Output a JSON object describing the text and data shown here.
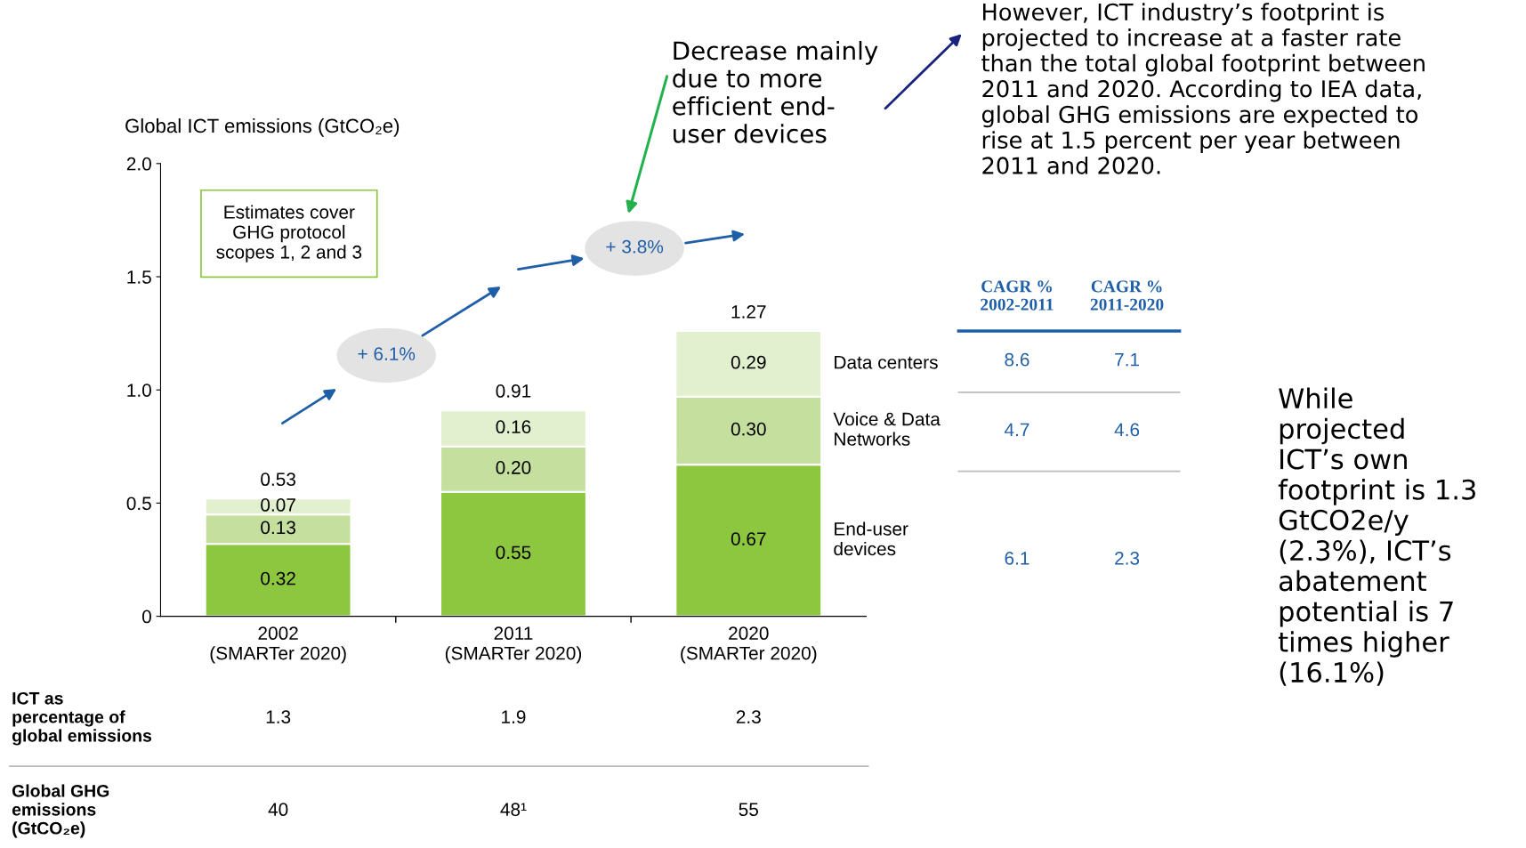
{
  "chart_data": {
    "type": "bar",
    "stacked": true,
    "ylabel": "Global ICT emissions (GtCO₂e)",
    "categories": [
      "2002\n(SMARTer 2020)",
      "2011\n(SMARTer 2020)",
      "2020\n(SMARTer 2020)"
    ],
    "series": [
      {
        "name": "End-user\ndevices",
        "color": "#8dc63f",
        "values": [
          0.32,
          0.55,
          0.67
        ],
        "value_labels": [
          "0.32",
          "0.55",
          "0.67"
        ]
      },
      {
        "name": "Voice & Data\nNetworks",
        "color": "#c5df9f",
        "values": [
          0.13,
          0.2,
          0.3
        ],
        "value_labels": [
          "0.13",
          "0.20",
          "0.30"
        ]
      },
      {
        "name": "Data centers",
        "color": "#e3f0d0",
        "values": [
          0.07,
          0.16,
          0.29
        ],
        "value_labels": [
          "0.07",
          "0.16",
          "0.29"
        ]
      }
    ],
    "totals": [
      "0.53",
      "0.91",
      "1.27"
    ],
    "ylim": [
      0,
      2.0
    ],
    "yticks": [
      0,
      {
        "value": 0.5,
        "label": "0.5"
      },
      {
        "value": 1.0,
        "label": "1.0"
      },
      {
        "value": 1.5,
        "label": "1.5"
      },
      {
        "value": 2.0,
        "label": "2.0"
      }
    ],
    "grid": false,
    "legend": false,
    "annotations": [
      "Estimates cover\nGHG protocol\nscopes 1, 2 and 3",
      "+ 6.1%",
      "+ 3.8%",
      "Decrease mainly\ndue to more\nefficient end-\nuser devices",
      "However, ICT industry’s footprint is\nprojected to increase at a faster rate\nthan the total global footprint between\n2011 and 2020. According to IEA data,\nglobal GHG emissions are expected to\nrise at 1.5 percent per year between\n2011 and 2020.",
      "CAGR %\n2002-2011",
      "CAGR %\n2011-2020",
      "8.6",
      "7.1",
      "4.7",
      "4.6",
      "6.1",
      "2.3",
      "While\nprojected\nICT’s own\nfootprint is 1.3\nGtCO2e/y\n(2.3%), ICT’s\nabatement\npotential is 7\ntimes higher\n(16.1%)",
      "ICT as\npercentage of\nglobal emissions",
      "1.3",
      "1.9",
      "2.3",
      "Global GHG\nemissions\n(GtCO₂e)",
      "40",
      "48¹",
      "55"
    ]
  }
}
